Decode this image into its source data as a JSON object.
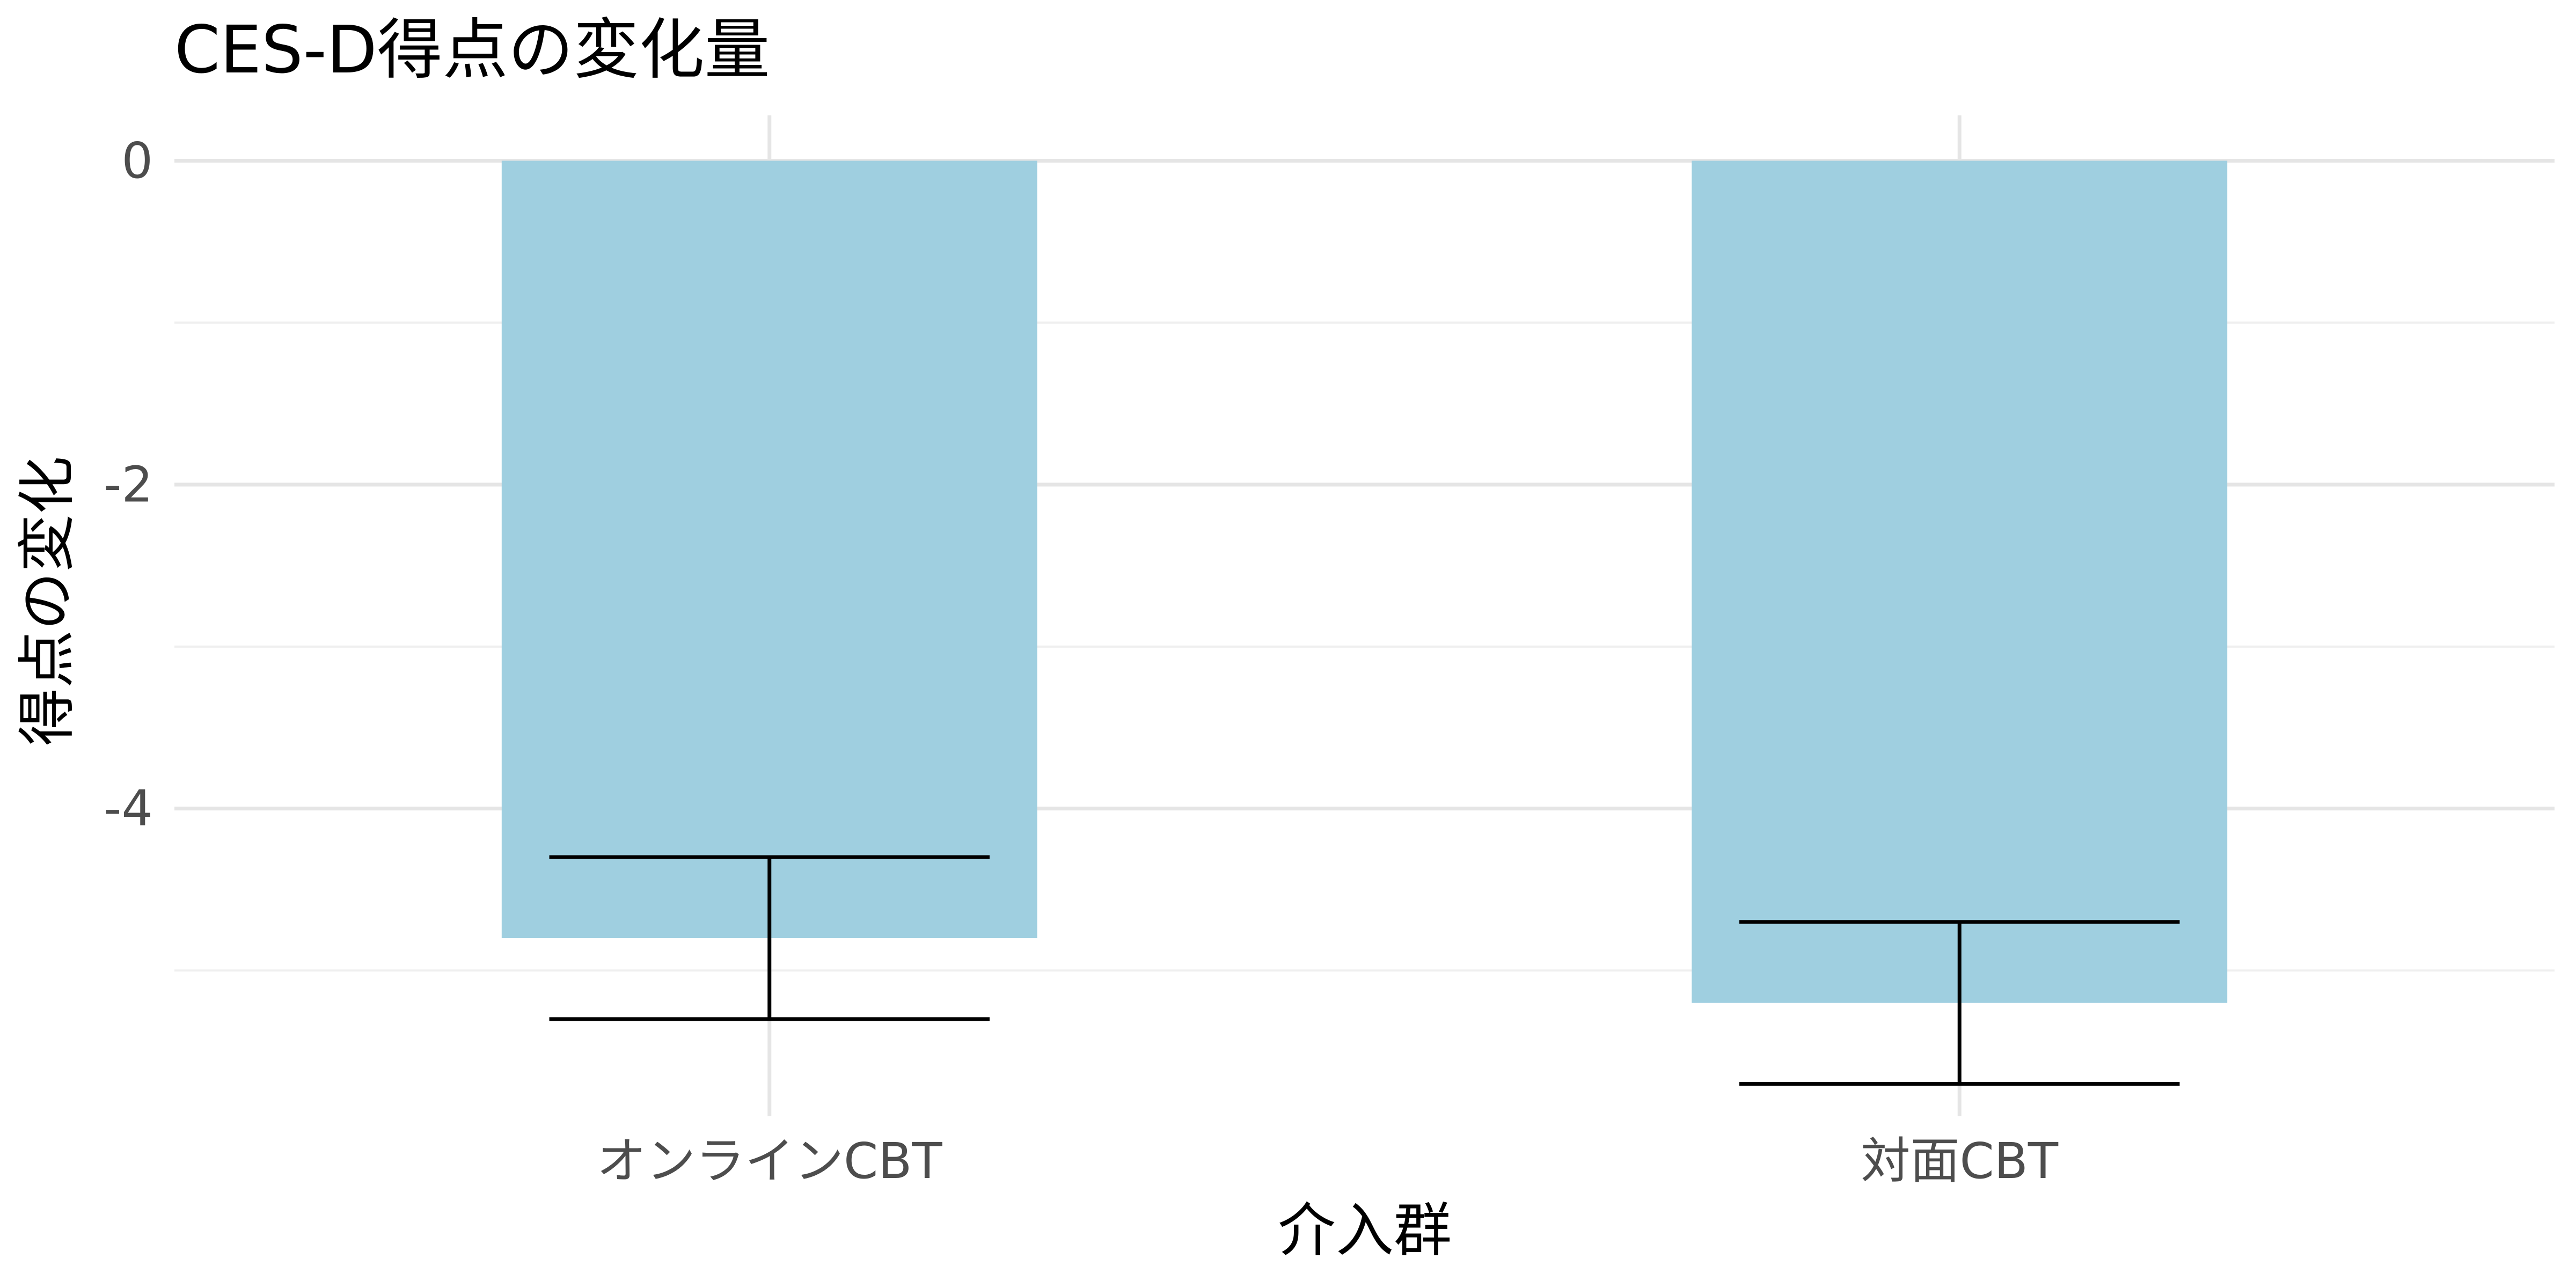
{
  "chart_data": {
    "type": "bar",
    "title": "CES-D得点の変化量",
    "xlabel": "介入群",
    "ylabel": "得点の変化",
    "categories": [
      "オンラインCBT",
      "対面CBT"
    ],
    "values": [
      -4.8,
      -5.2
    ],
    "error_bars": [
      {
        "lower": -5.3,
        "upper": -4.3
      },
      {
        "lower": -5.7,
        "upper": -4.7
      }
    ],
    "ylim": [
      -5.9,
      0.28
    ],
    "yticks": [
      0,
      -2,
      -4
    ],
    "ytick_labels": [
      "0",
      "-2",
      "-4"
    ],
    "grid": true,
    "colors": {
      "bar": "#9fcfe0",
      "error_bar": "#000000",
      "grid_major": "#e5e5e5",
      "grid_minor": "#efefef"
    }
  }
}
